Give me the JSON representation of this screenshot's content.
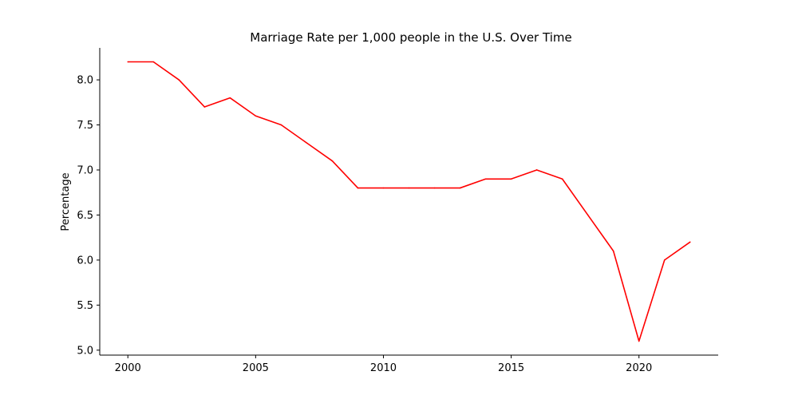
{
  "chart_data": {
    "type": "line",
    "title": "Marriage Rate per 1,000 people in the U.S. Over Time",
    "xlabel": "",
    "ylabel": "Percentage",
    "x": [
      2000,
      2001,
      2002,
      2003,
      2004,
      2005,
      2006,
      2007,
      2008,
      2009,
      2010,
      2011,
      2012,
      2013,
      2014,
      2015,
      2016,
      2017,
      2018,
      2019,
      2020,
      2021,
      2022
    ],
    "series": [
      {
        "name": "",
        "color": "#ff0000",
        "values": [
          8.2,
          8.2,
          8.0,
          7.7,
          7.8,
          7.6,
          7.5,
          7.3,
          7.1,
          6.8,
          6.8,
          6.8,
          6.8,
          6.8,
          6.9,
          6.9,
          7.0,
          6.9,
          6.5,
          6.1,
          5.1,
          6.0,
          6.2
        ]
      }
    ],
    "xlim": [
      1998.9,
      2023.1
    ],
    "ylim": [
      4.945,
      8.355
    ],
    "xticks": [
      2000,
      2005,
      2010,
      2015,
      2020
    ],
    "xtick_labels": [
      "2000",
      "2005",
      "2010",
      "2015",
      "2020"
    ],
    "yticks": [
      5.0,
      5.5,
      6.0,
      6.5,
      7.0,
      7.5,
      8.0
    ],
    "ytick_labels": [
      "5.0",
      "5.5",
      "6.0",
      "6.5",
      "7.0",
      "7.5",
      "8.0"
    ],
    "grid": false,
    "legend": "none",
    "spines": [
      "left",
      "bottom"
    ]
  }
}
